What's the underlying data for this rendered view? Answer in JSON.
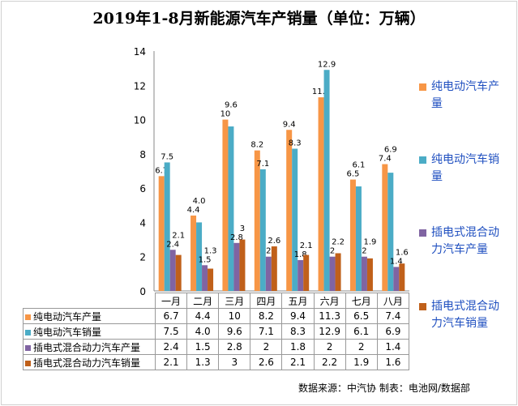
{
  "title": "2019年1-8月新能源汽车产销量（单位：万辆）",
  "source": "数据来源：中汽协 制表：电池网/数据部",
  "chart_data": {
    "type": "bar",
    "title": "2019年1-8月新能源汽车产销量（单位：万辆）",
    "categories": [
      "一月",
      "二月",
      "三月",
      "四月",
      "五月",
      "六月",
      "七月",
      "八月"
    ],
    "ylim": [
      0,
      14
    ],
    "yticks": [
      0,
      2,
      4,
      6,
      8,
      10,
      12,
      14
    ],
    "grid": false,
    "legend": "right",
    "series": [
      {
        "name": "纯电动汽车产量",
        "color": "#F79646",
        "values": [
          6.7,
          4.4,
          10,
          8.2,
          9.4,
          11.3,
          6.5,
          7.4
        ],
        "labels": [
          "6.7",
          "4.4",
          "10",
          "8.2",
          "9.4",
          "11.3",
          "6.5",
          "7.4"
        ]
      },
      {
        "name": "纯电动汽车销量",
        "color": "#4BACC6",
        "values": [
          7.5,
          4.0,
          9.6,
          7.1,
          8.3,
          12.9,
          6.1,
          6.9
        ],
        "labels": [
          "7.5",
          "4.0",
          "9.6",
          "7.1",
          "8.3",
          "12.9",
          "6.1",
          "6.9"
        ]
      },
      {
        "name": "插电式混合动力汽车产量",
        "color": "#8064A2",
        "values": [
          2.4,
          1.5,
          2.8,
          2,
          1.8,
          2,
          2,
          1.4
        ],
        "labels": [
          "2.4",
          "1.5",
          "2.8",
          "2",
          "1.8",
          "2",
          "2",
          "1.4"
        ]
      },
      {
        "name": "插电式混合动力汽车销量",
        "color": "#C0601A",
        "values": [
          2.1,
          1.3,
          3,
          2.6,
          2.1,
          2.2,
          1.9,
          1.6
        ],
        "labels": [
          "2.1",
          "1.3",
          "3",
          "2.6",
          "2.1",
          "2.2",
          "1.9",
          "1.6"
        ]
      }
    ]
  },
  "legend_lines": [
    [
      "纯电动汽车产",
      "量"
    ],
    [
      "纯电动汽车销",
      "量"
    ],
    [
      "插电式混合动",
      "力汽车产量"
    ],
    [
      "插电式混合动",
      "力汽车销量"
    ]
  ]
}
